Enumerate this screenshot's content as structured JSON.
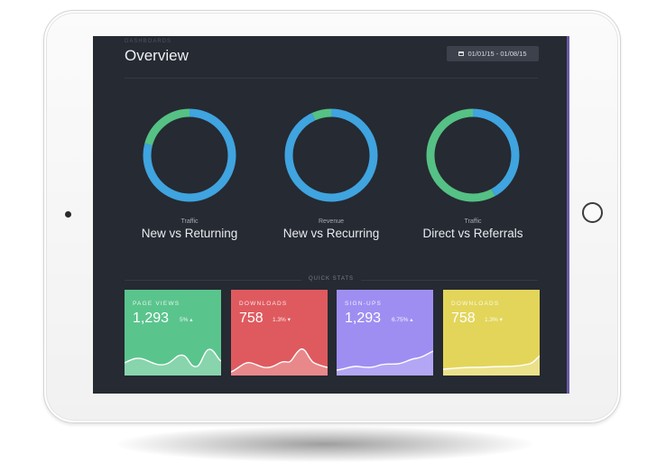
{
  "header": {
    "breadcrumb": "DASHBOARDS",
    "title": "Overview",
    "date_range": "01/01/15 - 01/08/15",
    "date_icon": "calendar-icon"
  },
  "donuts": [
    {
      "subtitle": "Traffic",
      "title": "New vs Returning",
      "segments": [
        {
          "color": "#3fa4df",
          "value": 0.79
        },
        {
          "color": "#55c184",
          "value": 0.21
        }
      ]
    },
    {
      "subtitle": "Revenue",
      "title": "New vs Recurring",
      "segments": [
        {
          "color": "#3fa4df",
          "value": 0.93
        },
        {
          "color": "#55c184",
          "value": 0.07
        }
      ]
    },
    {
      "subtitle": "Traffic",
      "title": "Direct vs Referrals",
      "segments": [
        {
          "color": "#3fa4df",
          "value": 0.42
        },
        {
          "color": "#55c184",
          "value": 0.58
        }
      ]
    }
  ],
  "quick_stats": {
    "label": "QUICK STATS",
    "cards": [
      {
        "label": "PAGE VIEWS",
        "value": "1,293",
        "change": "5%",
        "trend": "up",
        "color": "#5ac48d"
      },
      {
        "label": "DOWNLOADS",
        "value": "758",
        "change": "1.3%",
        "trend": "down",
        "color": "#df5a5f"
      },
      {
        "label": "SIGN-UPS",
        "value": "1,293",
        "change": "6.75%",
        "trend": "up",
        "color": "#9e8ef2"
      },
      {
        "label": "DOWNLOADS",
        "value": "758",
        "change": "1.3%",
        "trend": "down",
        "color": "#e3d55a"
      }
    ]
  }
}
